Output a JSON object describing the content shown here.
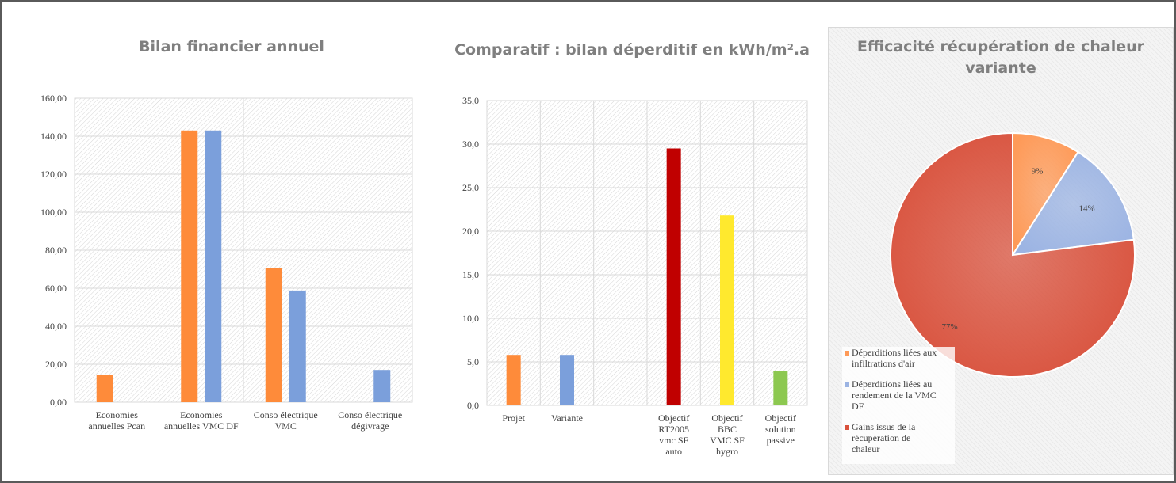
{
  "chart_data": [
    {
      "type": "bar",
      "title": "Bilan financier annuel",
      "categories": [
        "Economies annuelles Pcan",
        "Economies annuelles VMC DF",
        "Conso électrique VMC",
        "Conso électrique dégivrage"
      ],
      "category_lines": [
        [
          "Economies",
          "annuelles Pcan"
        ],
        [
          "Economies",
          "annuelles VMC DF"
        ],
        [
          "Conso électrique",
          "VMC"
        ],
        [
          "Conso électrique",
          "dégivrage"
        ]
      ],
      "series": [
        {
          "color": "#fe8b3a",
          "values": [
            14.2,
            143.0,
            70.8,
            null
          ]
        },
        {
          "color": "#7b9fdb",
          "values": [
            null,
            143.0,
            58.8,
            17.0
          ]
        }
      ],
      "ylim": [
        0,
        160
      ],
      "yticks": [
        0,
        20,
        40,
        60,
        80,
        100,
        120,
        140,
        160
      ],
      "ytick_labels": [
        "0,00",
        "20,00",
        "40,00",
        "60,00",
        "80,00",
        "100,00",
        "120,00",
        "140,00",
        "160,00"
      ],
      "grid": true,
      "legend": "none"
    },
    {
      "type": "bar",
      "title": "Comparatif : bilan déperditif en kWh/m².a",
      "categories": [
        "Projet",
        "Variante",
        "",
        "Objectif RT2005 vmc SF auto",
        "Objectif BBC VMC SF hygro",
        "Objectif solution passive"
      ],
      "category_lines": [
        [
          "Projet"
        ],
        [
          "Variante"
        ],
        [],
        [
          "Objectif",
          "RT2005",
          "vmc SF",
          "auto"
        ],
        [
          "Objectif",
          "BBC",
          "VMC SF",
          "hygro"
        ],
        [
          "Objectif",
          "solution",
          "passive"
        ]
      ],
      "values": [
        5.8,
        5.8,
        null,
        29.5,
        21.8,
        4.0
      ],
      "colors": [
        "#fe8b3a",
        "#7b9fdb",
        "#ffffff",
        "#c00000",
        "#ffe92e",
        "#8cc850"
      ],
      "ylim": [
        0,
        35
      ],
      "yticks": [
        0,
        5,
        10,
        15,
        20,
        25,
        30,
        35
      ],
      "ytick_labels": [
        "0,0",
        "5,0",
        "10,0",
        "15,0",
        "20,0",
        "25,0",
        "30,0",
        "35,0"
      ],
      "grid": true,
      "legend": "none"
    },
    {
      "type": "pie",
      "title": "Efficacité récupération de chaleur variante",
      "labels": [
        "Déperditions liées aux infiltrations d'air",
        "Déperditions liées au rendement de la VMC DF",
        "Gains issus de la récupération de chaleur"
      ],
      "legend_lines": [
        [
          "Déperditions liées aux",
          "infiltrations d'air"
        ],
        [
          "Déperditions liées au",
          "rendement de la VMC",
          "DF"
        ],
        [
          "Gains issus de la",
          "récupération de",
          "chaleur"
        ]
      ],
      "values": [
        9,
        14,
        77
      ],
      "value_labels": [
        "9%",
        "14%",
        "77%"
      ],
      "colors": [
        "#fe9a58",
        "#9cb4e3",
        "#d9513c"
      ],
      "legend": "bottom-left"
    }
  ]
}
